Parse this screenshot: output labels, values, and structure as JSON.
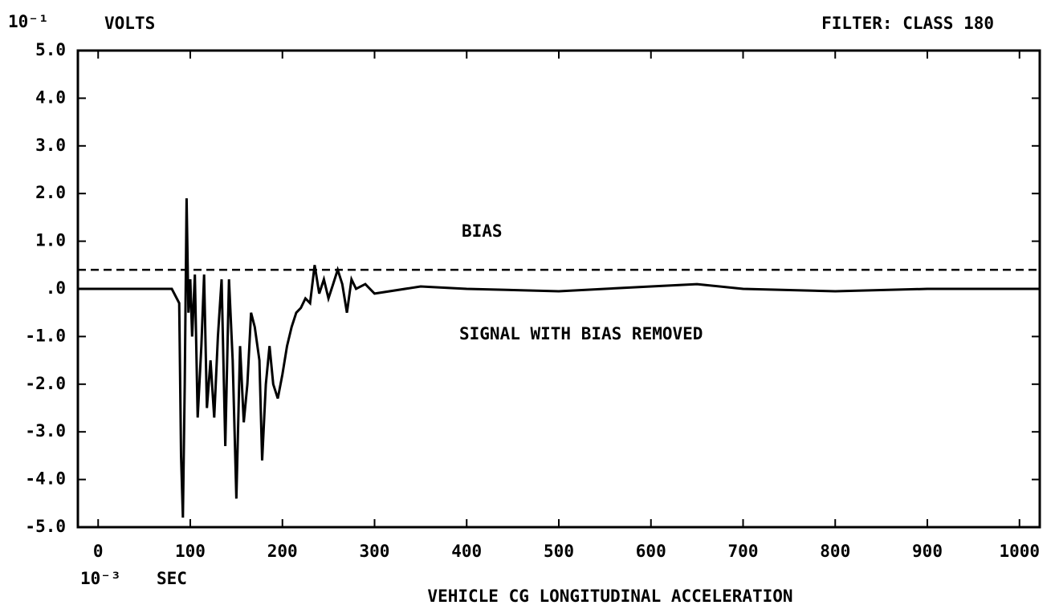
{
  "chart_data": {
    "type": "line",
    "y_axis_label": "VOLTS",
    "y_scale_label": "10⁻¹",
    "x_axis_label": "SEC",
    "x_scale_label": "10⁻³",
    "title": "VEHICLE CG LONGITUDINAL ACCELERATION",
    "subtitle": "FILTER: CLASS 180",
    "annotations": [
      "BIAS",
      "SIGNAL WITH BIAS REMOVED"
    ],
    "xlim": [
      -22,
      1022
    ],
    "ylim": [
      -5,
      5
    ],
    "xticks": [
      0,
      100,
      200,
      300,
      400,
      500,
      600,
      700,
      800,
      900,
      1000
    ],
    "yticks": [
      {
        "value": -5,
        "label": "-5.0"
      },
      {
        "value": -4,
        "label": "-4.0"
      },
      {
        "value": -3,
        "label": "-3.0"
      },
      {
        "value": -2,
        "label": "-2.0"
      },
      {
        "value": -1,
        "label": "-1.0"
      },
      {
        "value": 0,
        "label": ".0"
      },
      {
        "value": 1,
        "label": "1.0"
      },
      {
        "value": 2,
        "label": "2.0"
      },
      {
        "value": 3,
        "label": "3.0"
      },
      {
        "value": 4,
        "label": "4.0"
      },
      {
        "value": 5,
        "label": "5.0"
      }
    ],
    "series": [
      {
        "color": "#000000",
        "dashed": true,
        "x": [
          -22,
          1022
        ],
        "values": [
          0.4,
          0.4
        ]
      },
      {
        "color": "#000000",
        "dashed": false,
        "x": [
          -22,
          80,
          88,
          90,
          92,
          94,
          96,
          98,
          100,
          102,
          105,
          108,
          112,
          115,
          118,
          122,
          126,
          130,
          134,
          138,
          142,
          146,
          150,
          154,
          158,
          162,
          166,
          170,
          175,
          178,
          182,
          186,
          190,
          195,
          200,
          205,
          210,
          215,
          220,
          225,
          230,
          235,
          240,
          245,
          250,
          255,
          260,
          265,
          270,
          275,
          280,
          290,
          300,
          350,
          400,
          500,
          600,
          650,
          700,
          800,
          900,
          1000,
          1022
        ],
        "values": [
          0,
          0,
          -0.3,
          -3.5,
          -4.8,
          -2,
          1.9,
          -0.5,
          0.2,
          -1,
          0.3,
          -2.7,
          -1.2,
          0.3,
          -2.5,
          -1.5,
          -2.7,
          -1,
          0.2,
          -3.3,
          0.2,
          -1.5,
          -4.4,
          -1.2,
          -2.8,
          -2,
          -0.5,
          -0.8,
          -1.5,
          -3.6,
          -2,
          -1.2,
          -2,
          -2.3,
          -1.8,
          -1.2,
          -0.8,
          -0.5,
          -0.4,
          -0.2,
          -0.3,
          0.5,
          -0.1,
          0.2,
          -0.2,
          0.1,
          0.4,
          0.1,
          -0.5,
          0.2,
          0,
          0.1,
          -0.1,
          0.05,
          0,
          -0.05,
          0.05,
          0.1,
          0,
          -0.05,
          0,
          0,
          0
        ]
      }
    ]
  }
}
